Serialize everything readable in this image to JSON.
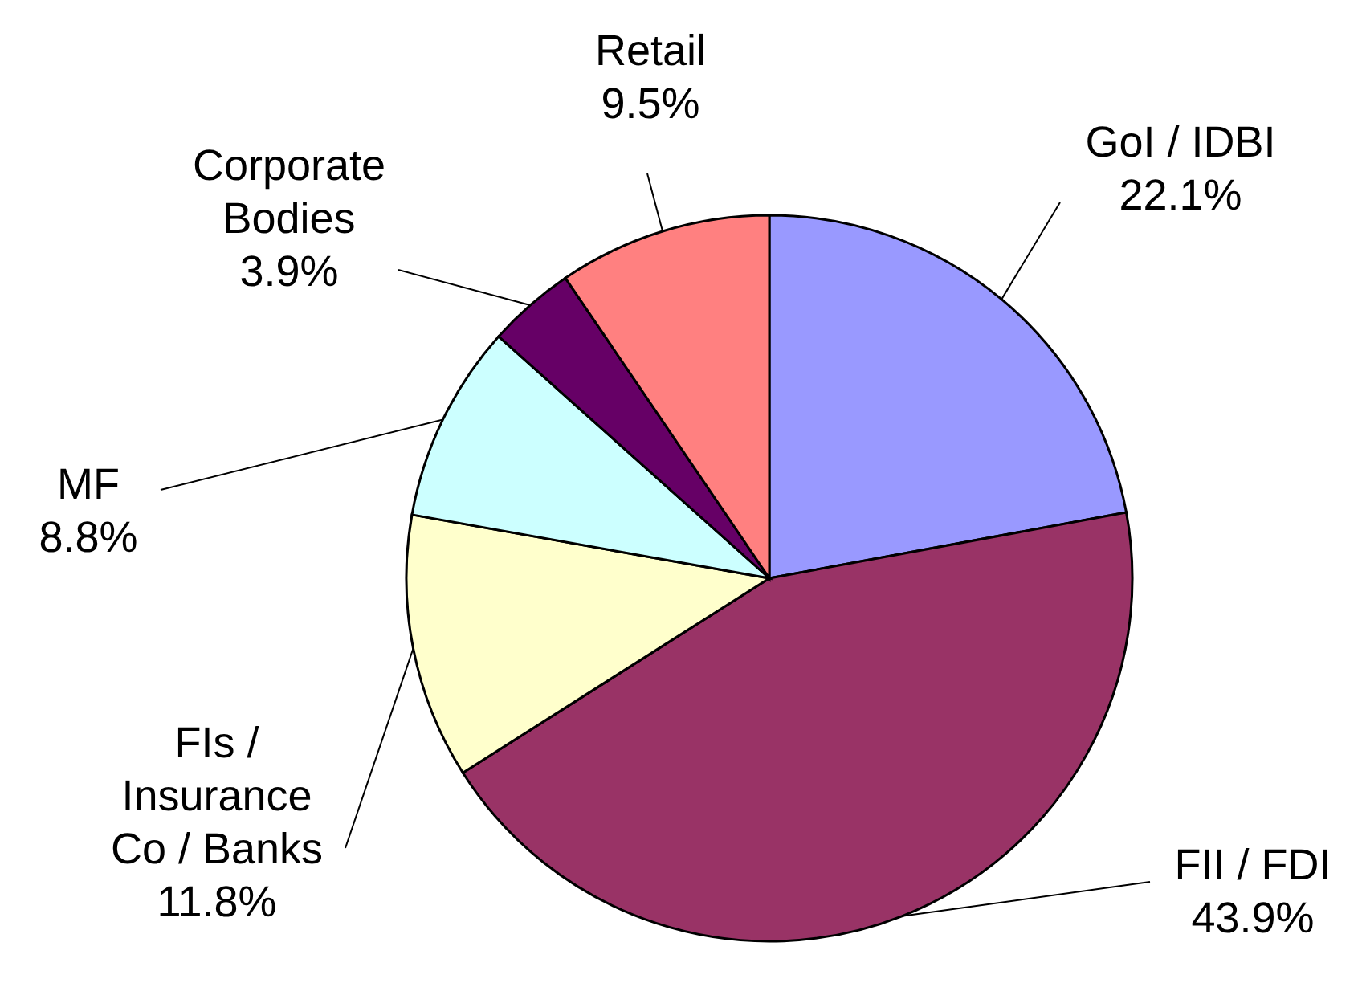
{
  "chart_data": {
    "type": "pie",
    "categories": [
      "GoI / IDBI",
      "FII / FDI",
      "FIs / Insurance Co / Banks",
      "MF",
      "Corporate Bodies",
      "Retail"
    ],
    "values": [
      22.1,
      43.9,
      11.8,
      8.8,
      3.9,
      9.5
    ],
    "colors": [
      "#9999ff",
      "#993366",
      "#ffffcc",
      "#ccffff",
      "#660066",
      "#ff8080"
    ],
    "value_labels": [
      "22.1%",
      "43.9%",
      "11.8%",
      "8.8%",
      "3.9%",
      "9.5%"
    ],
    "legend": false
  }
}
